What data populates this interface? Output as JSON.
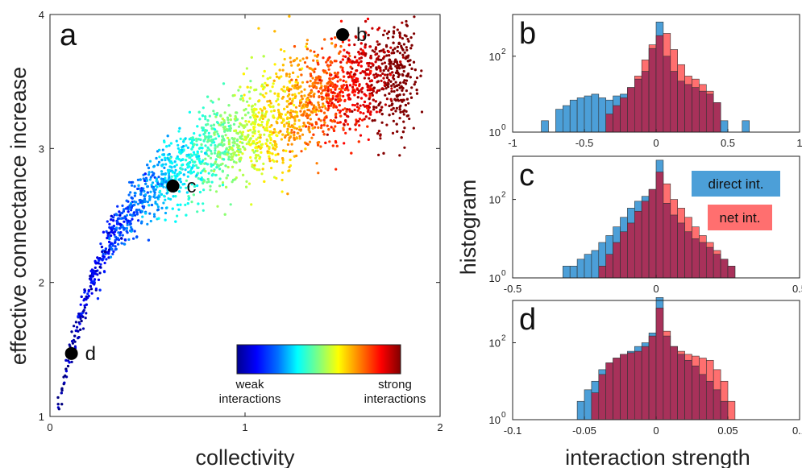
{
  "colors": {
    "direct": "#4c9fd8",
    "net": "#ff6f6f",
    "overlap": "#a8315a",
    "marker": "#000000",
    "colormap": [
      "#00008f",
      "#0000ff",
      "#0080ff",
      "#00ffff",
      "#80ff80",
      "#ffff00",
      "#ff8000",
      "#ff0000",
      "#800000"
    ]
  },
  "chart_data": [
    {
      "type": "scatter",
      "panel": "a",
      "xlabel": "collectivity",
      "ylabel": "effective connectance increase",
      "xlim": [
        0,
        2
      ],
      "ylim": [
        1,
        4
      ],
      "xticks": [
        "0",
        "1",
        "2"
      ],
      "yticks": [
        "1",
        "2",
        "3",
        "4"
      ],
      "trend": {
        "x": [
          0.05,
          0.1,
          0.2,
          0.3,
          0.45,
          0.6,
          0.8,
          1.0,
          1.2,
          1.4,
          1.6,
          1.8
        ],
        "y": [
          1.1,
          1.45,
          1.95,
          2.3,
          2.6,
          2.78,
          2.95,
          3.1,
          3.25,
          3.4,
          3.5,
          3.55
        ]
      },
      "highlighted_points": [
        {
          "label": "b",
          "x": 1.5,
          "y": 3.85
        },
        {
          "label": "c",
          "x": 0.63,
          "y": 2.72
        },
        {
          "label": "d",
          "x": 0.11,
          "y": 1.47
        }
      ],
      "colorbar": {
        "labels": [
          "weak\ninteractions",
          "strong\ninteractions"
        ]
      }
    },
    {
      "type": "histogram",
      "panel": "b",
      "ylabel": "histogram",
      "yscale": "log",
      "xlim": [
        -1,
        1
      ],
      "xticks": [
        "-1",
        "-0.5",
        "0",
        "0.5",
        "1"
      ],
      "ytick_labels": [
        "10",
        "10"
      ],
      "ytick_exponents": [
        "0",
        "2"
      ],
      "bin_edges": [
        -0.8,
        -0.75,
        -0.7,
        -0.65,
        -0.6,
        -0.55,
        -0.5,
        -0.45,
        -0.4,
        -0.35,
        -0.3,
        -0.25,
        -0.2,
        -0.15,
        -0.1,
        -0.05,
        0.0,
        0.05,
        0.1,
        0.15,
        0.2,
        0.25,
        0.3,
        0.35,
        0.4,
        0.45,
        0.5,
        0.55,
        0.6,
        0.65
      ],
      "series": [
        {
          "name": "direct int.",
          "values": [
            2,
            1,
            4,
            5,
            7,
            8,
            9,
            10,
            8,
            7,
            9,
            10,
            15,
            25,
            40,
            160,
            800,
            100,
            40,
            22,
            18,
            15,
            12,
            10,
            6,
            2,
            1,
            1,
            2
          ]
        },
        {
          "name": "net int.",
          "values": [
            0,
            0,
            0,
            0,
            0,
            0,
            0,
            0,
            1,
            3,
            5,
            8,
            15,
            30,
            80,
            200,
            350,
            400,
            150,
            60,
            30,
            25,
            18,
            12,
            6,
            1,
            0,
            0,
            0
          ]
        }
      ]
    },
    {
      "type": "histogram",
      "panel": "c",
      "yscale": "log",
      "xlim": [
        -0.5,
        0.5
      ],
      "xticks": [
        "-0.5",
        "0",
        "0.5"
      ],
      "ytick_labels": [
        "10",
        "10"
      ],
      "ytick_exponents": [
        "0",
        "2"
      ],
      "legend": [
        "direct int.",
        "net int."
      ],
      "bin_edges": [
        -0.35,
        -0.325,
        -0.3,
        -0.275,
        -0.25,
        -0.225,
        -0.2,
        -0.175,
        -0.15,
        -0.125,
        -0.1,
        -0.075,
        -0.05,
        -0.025,
        0.0,
        0.025,
        0.05,
        0.075,
        0.1,
        0.125,
        0.15,
        0.175,
        0.2,
        0.225,
        0.25,
        0.275,
        0.3
      ],
      "series": [
        {
          "name": "direct int.",
          "values": [
            1,
            2,
            2,
            3,
            4,
            5,
            8,
            12,
            20,
            35,
            60,
            90,
            120,
            180,
            1000,
            80,
            40,
            25,
            15,
            10,
            8,
            6,
            4,
            3,
            2,
            1
          ]
        },
        {
          "name": "net int.",
          "values": [
            0,
            0,
            0,
            0,
            0,
            1,
            2,
            4,
            8,
            15,
            25,
            50,
            90,
            180,
            500,
            250,
            100,
            60,
            35,
            20,
            12,
            8,
            5,
            3,
            2,
            1
          ]
        }
      ]
    },
    {
      "type": "histogram",
      "panel": "d",
      "xlabel": "interaction strength",
      "yscale": "log",
      "xlim": [
        -0.1,
        0.1
      ],
      "xticks": [
        "-0.1",
        "-0.05",
        "0",
        "0.05",
        "0.1"
      ],
      "ytick_labels": [
        "10",
        "10"
      ],
      "ytick_exponents": [
        "0",
        "2"
      ],
      "bin_edges": [
        -0.07,
        -0.065,
        -0.06,
        -0.055,
        -0.05,
        -0.045,
        -0.04,
        -0.035,
        -0.03,
        -0.025,
        -0.02,
        -0.015,
        -0.01,
        -0.005,
        0.0,
        0.005,
        0.01,
        0.015,
        0.02,
        0.025,
        0.03,
        0.035,
        0.04,
        0.045,
        0.05,
        0.055,
        0.06
      ],
      "series": [
        {
          "name": "direct int.",
          "values": [
            1,
            0,
            1,
            3,
            6,
            10,
            20,
            30,
            40,
            50,
            60,
            80,
            100,
            180,
            1500,
            150,
            80,
            50,
            35,
            25,
            15,
            10,
            6,
            3,
            1,
            1
          ]
        },
        {
          "name": "net int.",
          "values": [
            0,
            0,
            0,
            0,
            1,
            5,
            15,
            30,
            40,
            50,
            55,
            60,
            80,
            150,
            800,
            200,
            80,
            60,
            50,
            45,
            40,
            35,
            20,
            10,
            3,
            1
          ]
        }
      ]
    }
  ]
}
